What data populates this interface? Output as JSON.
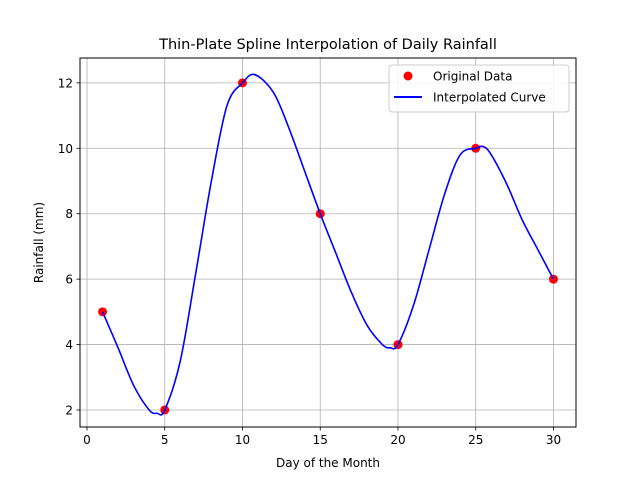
{
  "chart_data": {
    "type": "line",
    "title": "Thin-Plate Spline Interpolation of Daily Rainfall",
    "xlabel": "Day of the Month",
    "ylabel": "Rainfall (mm)",
    "xlim": [
      -0.45,
      31.45
    ],
    "ylim": [
      1.48,
      12.76
    ],
    "xticks": [
      0,
      5,
      10,
      15,
      20,
      25,
      30
    ],
    "yticks": [
      2,
      4,
      6,
      8,
      10,
      12
    ],
    "grid": true,
    "legend_position": "upper right",
    "series": [
      {
        "name": "Original Data",
        "kind": "scatter",
        "color": "#ff0000",
        "x": [
          1,
          5,
          10,
          15,
          20,
          25,
          30
        ],
        "y": [
          5,
          2,
          12,
          8,
          4,
          10,
          6
        ]
      },
      {
        "name": "Interpolated Curve",
        "kind": "line",
        "color": "#0000ff",
        "x": [
          1,
          2,
          3,
          4,
          4.5,
          5,
          6,
          7,
          8,
          9,
          10,
          10.8,
          12,
          13,
          14,
          15,
          16,
          17,
          18,
          19,
          19.5,
          20,
          21,
          22,
          23,
          24,
          25,
          25.5,
          26,
          27,
          28,
          29,
          30
        ],
        "y": [
          5,
          3.9,
          2.75,
          2.0,
          1.9,
          2.0,
          3.5,
          6.2,
          9.0,
          11.3,
          12.0,
          12.25,
          11.7,
          10.6,
          9.3,
          8.0,
          6.8,
          5.6,
          4.6,
          4.0,
          3.9,
          4.0,
          5.2,
          6.9,
          8.6,
          9.8,
          10.0,
          10.05,
          9.8,
          8.9,
          7.8,
          6.9,
          6.0
        ]
      }
    ]
  }
}
